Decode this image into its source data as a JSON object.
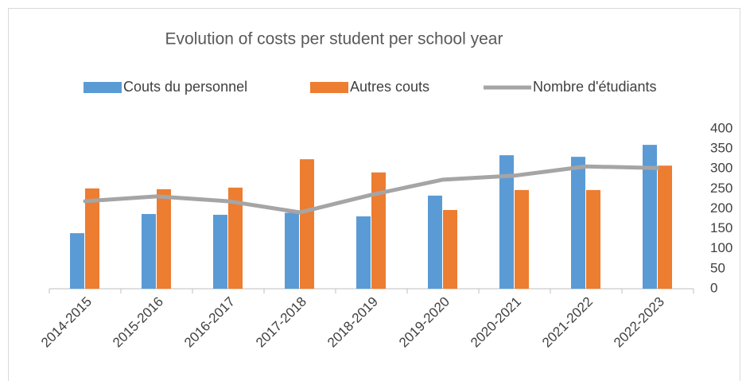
{
  "chart_data": {
    "type": "bar-line",
    "title": "Evolution of costs per student per school year",
    "categories": [
      "2014-2015",
      "2015-2016",
      "2016-2017",
      "2017-2018",
      "2018-2019",
      "2019-2020",
      "2020-2021",
      "2021-2022",
      "2022-2023"
    ],
    "series": [
      {
        "name": "Couts du personnel",
        "type": "bar",
        "color": "#5b9bd5",
        "values": [
          139,
          187,
          185,
          190,
          181,
          233,
          334,
          330,
          360
        ]
      },
      {
        "name": "Autres couts",
        "type": "bar",
        "color": "#ed7d31",
        "values": [
          251,
          249,
          253,
          324,
          291,
          197,
          247,
          247,
          308
        ]
      },
      {
        "name": "Nombre d'étudiants",
        "type": "line",
        "color": "#a5a5a5",
        "values": [
          219,
          231,
          219,
          191,
          235,
          273,
          283,
          306,
          302
        ]
      }
    ],
    "ylim": [
      0,
      400
    ],
    "yticks": [
      0,
      50,
      100,
      150,
      200,
      250,
      300,
      350,
      400
    ],
    "grid": false
  }
}
